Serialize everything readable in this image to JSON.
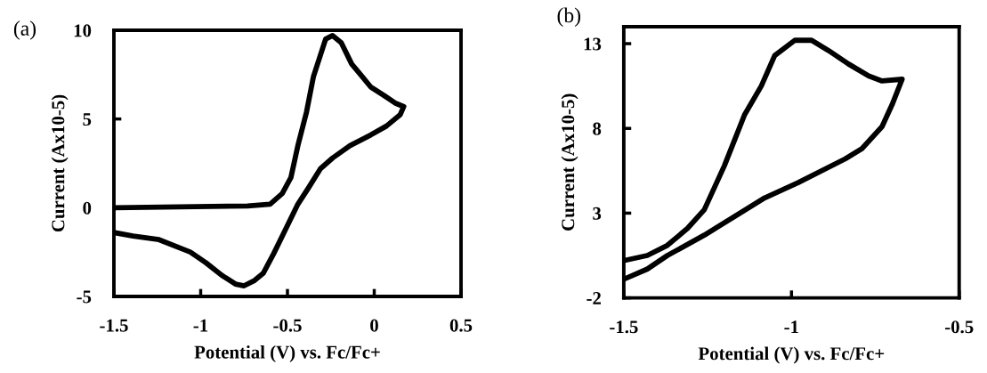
{
  "chart_data": [
    {
      "type": "line",
      "xlabel": "Potential (V) vs. Fc/Fc+",
      "ylabel": "Current (Ax10-5)",
      "annotations": [
        "(a)"
      ],
      "xlim": [
        -1.5,
        0.5
      ],
      "ylim": [
        -5,
        10
      ],
      "xticks": [
        -1.5,
        -1,
        -0.5,
        0,
        0.5
      ],
      "yticks": [
        -5,
        0,
        5,
        10
      ],
      "grid": false,
      "marker": "none",
      "line_style": "solid",
      "series": [
        {
          "color": "#000000",
          "x": [
            -1.5,
            -0.73,
            -0.6,
            -0.53,
            -0.48,
            -0.44,
            -0.39,
            -0.35,
            -0.31,
            -0.28,
            -0.24,
            -0.19,
            -0.13,
            -0.07,
            -0.02,
            0.06,
            0.12,
            0.17,
            0.15,
            0.07,
            -0.02,
            -0.14,
            -0.24,
            -0.31,
            -0.38,
            -0.44,
            -0.51,
            -0.58,
            -0.64,
            -0.69,
            -0.75,
            -0.8,
            -0.88,
            -0.97,
            -1.06,
            -1.24,
            -1.39,
            -1.5
          ],
          "values": [
            0,
            0.1,
            0.2,
            0.8,
            1.7,
            3.5,
            5.4,
            7.4,
            8.6,
            9.5,
            9.7,
            9.3,
            8.1,
            7.4,
            6.8,
            6.3,
            5.9,
            5.7,
            5.25,
            4.6,
            4.1,
            3.5,
            2.8,
            2.2,
            1.1,
            0.2,
            -1.2,
            -2.6,
            -3.7,
            -4.1,
            -4.4,
            -4.3,
            -3.8,
            -3.1,
            -2.5,
            -1.8,
            -1.6,
            -1.4
          ]
        }
      ]
    },
    {
      "type": "line",
      "xlabel": "Potential (V) vs. Fc/Fc+",
      "ylabel": "Current (Ax10-5)",
      "annotations": [
        "(b)"
      ],
      "xlim": [
        -1.5,
        -0.5
      ],
      "ylim": [
        -2,
        14
      ],
      "xticks": [
        -1.5,
        -1,
        -0.5
      ],
      "yticks": [
        -2,
        3,
        8,
        13
      ],
      "grid": false,
      "marker": "none",
      "line_style": "solid",
      "series": [
        {
          "color": "#000000",
          "x": [
            -1.5,
            -1.43,
            -1.37,
            -1.31,
            -1.26,
            -1.23,
            -1.2,
            -1.17,
            -1.14,
            -1.09,
            -1.05,
            -0.99,
            -0.94,
            -0.89,
            -0.83,
            -0.77,
            -0.73,
            -0.67,
            -0.68,
            -0.7,
            -0.73,
            -0.79,
            -0.84,
            -0.98,
            -1.08,
            -1.17,
            -1.26,
            -1.37,
            -1.43,
            -1.5
          ],
          "values": [
            0.2,
            0.5,
            1.1,
            2.1,
            3.2,
            4.5,
            5.8,
            7.3,
            8.8,
            10.5,
            12.3,
            13.2,
            13.2,
            12.6,
            11.8,
            11.1,
            10.8,
            10.9,
            10.4,
            9.4,
            8.1,
            6.8,
            6.2,
            4.8,
            3.9,
            2.8,
            1.7,
            0.5,
            -0.3,
            -0.9
          ]
        }
      ]
    }
  ]
}
